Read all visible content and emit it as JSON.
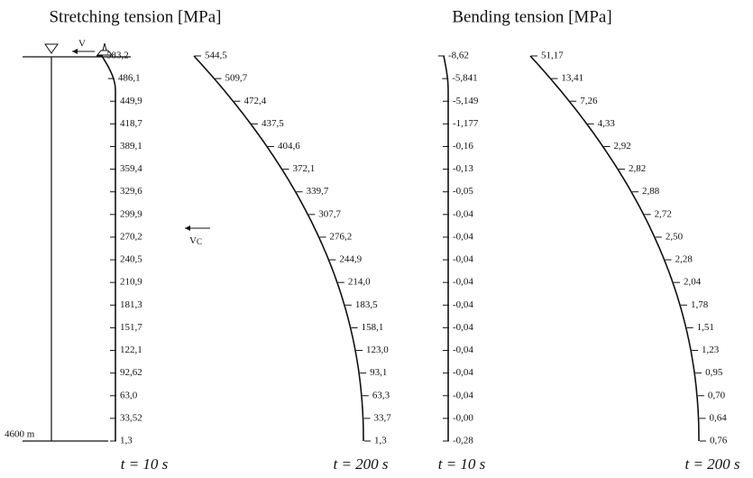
{
  "titles": [
    "Stretching tension [MPa]",
    "Bending tension [MPa]"
  ],
  "panels": [
    {
      "caption": "t = 10 s",
      "labels": [
        "583,2",
        "486,1",
        "449,9",
        "418,7",
        "389,1",
        "359,4",
        "329,6",
        "299,9",
        "270,2",
        "240,5",
        "210,9",
        "181,3",
        "151,7",
        "122,1",
        "92,62",
        "63,0",
        "33,52",
        "1,3"
      ]
    },
    {
      "caption": "t = 200 s",
      "labels": [
        "544,5",
        "509,7",
        "472,4",
        "437,5",
        "404,6",
        "372,1",
        "339,7",
        "307,7",
        "276,2",
        "244,9",
        "214,0",
        "183,5",
        "158,1",
        "123,0",
        "93,1",
        "63,3",
        "33,7",
        "1,3"
      ]
    },
    {
      "caption": "t = 10 s",
      "labels": [
        "-8,62",
        "-5,841",
        "-5,149",
        "-1,177",
        "-0,16",
        "-0,13",
        "-0,05",
        "-0,04",
        "-0,04",
        "-0,04",
        "-0,04",
        "-0,04",
        "-0,04",
        "-0,04",
        "-0,04",
        "-0,04",
        "-0,00",
        "-0,28"
      ]
    },
    {
      "caption": "t = 200 s",
      "labels": [
        "51,17",
        "13,41",
        "7,26",
        "4,33",
        "2,92",
        "2,82",
        "2,88",
        "2,72",
        "2,50",
        "2,28",
        "2,04",
        "1,78",
        "1,51",
        "1,23",
        "0,95",
        "0,70",
        "0,64",
        "0,76"
      ]
    }
  ],
  "sketch": {
    "surface_velocity": "V",
    "current_velocity": "V",
    "current_velocity_subscript": "C",
    "depth": "4600 m"
  }
}
